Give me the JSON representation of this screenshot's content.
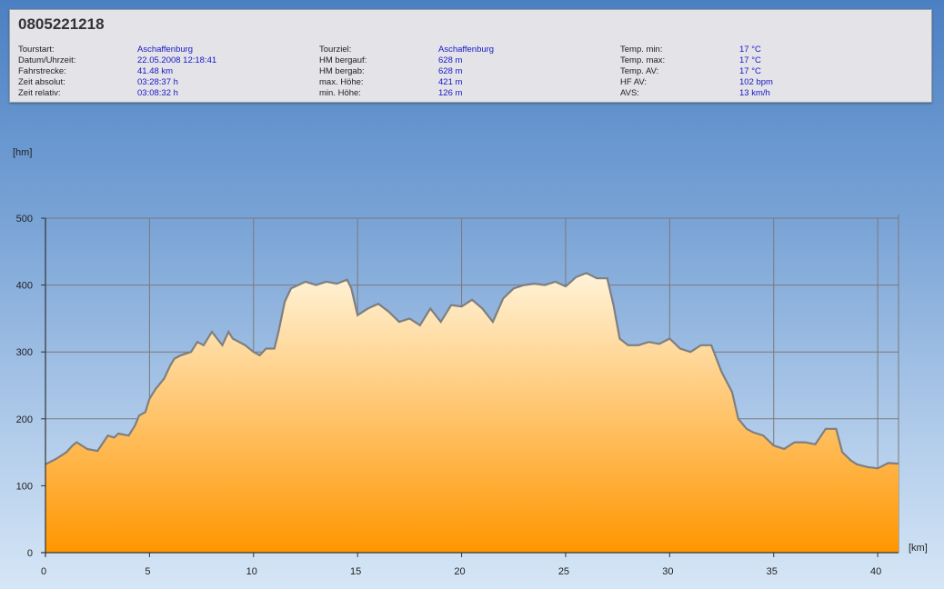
{
  "info": {
    "title": "0805221218",
    "columns": [
      [
        {
          "label": "Tourstart:",
          "value": "Aschaffenburg"
        },
        {
          "label": "Datum/Uhrzeit:",
          "value": "22.05.2008 12:18:41"
        },
        {
          "label": "Fahrstrecke:",
          "value": "41.48 km"
        },
        {
          "label": "Zeit absolut:",
          "value": "03:28:37 h"
        },
        {
          "label": "Zeit relativ:",
          "value": "03:08:32 h"
        }
      ],
      [
        {
          "label": "Tourziel:",
          "value": "Aschaffenburg"
        },
        {
          "label": "HM bergauf:",
          "value": "628 m"
        },
        {
          "label": "HM bergab:",
          "value": "628 m"
        },
        {
          "label": "max. Höhe:",
          "value": "421 m"
        },
        {
          "label": "min. Höhe:",
          "value": "126 m"
        }
      ],
      [
        {
          "label": "Temp. min:",
          "value": "17 °C"
        },
        {
          "label": "Temp. max:",
          "value": "17 °C"
        },
        {
          "label": "Temp. AV:",
          "value": "17 °C"
        },
        {
          "label": "HF AV:",
          "value": "102 bpm"
        },
        {
          "label": "AVS:",
          "value": "13 km/h"
        }
      ]
    ]
  },
  "chart_data": {
    "type": "area",
    "ylabel": "[hm]",
    "xlabel": "[km]",
    "xlim": [
      0,
      41
    ],
    "ylim": [
      0,
      500
    ],
    "x_ticks": [
      0,
      5,
      10,
      15,
      20,
      25,
      30,
      35,
      40
    ],
    "y_ticks": [
      0,
      100,
      200,
      300,
      400,
      500
    ],
    "grid": true,
    "colors": {
      "fill_top": "#fff3d9",
      "fill_bottom": "#ff9600",
      "line": "#7f7f7f",
      "grid": "#7a7a7a"
    },
    "x": [
      0,
      0.5,
      1,
      1.3,
      1.5,
      2,
      2.5,
      3,
      3.3,
      3.5,
      4,
      4.3,
      4.5,
      4.8,
      5,
      5.3,
      5.7,
      6,
      6.2,
      6.5,
      7,
      7.3,
      7.6,
      8,
      8.2,
      8.5,
      8.8,
      9,
      9.3,
      9.6,
      10,
      10.3,
      10.6,
      11,
      11.2,
      11.5,
      11.8,
      12.5,
      13,
      13.5,
      14,
      14.5,
      14.7,
      15,
      15.5,
      16,
      16.5,
      17,
      17.5,
      18,
      18.5,
      19,
      19.5,
      20,
      20.5,
      21,
      21.5,
      22,
      22.5,
      23,
      23.5,
      24,
      24.5,
      25,
      25.5,
      26,
      26.5,
      27,
      27.3,
      27.6,
      28,
      28.5,
      29,
      29.5,
      30,
      30.5,
      31,
      31.5,
      32,
      32.5,
      33,
      33.3,
      33.7,
      34,
      34.5,
      35,
      35.5,
      36,
      36.5,
      37,
      37.5,
      38,
      38.3,
      38.7,
      39,
      39.5,
      40,
      40.5,
      41
    ],
    "y": [
      132,
      140,
      150,
      160,
      165,
      155,
      152,
      175,
      172,
      178,
      175,
      190,
      205,
      210,
      230,
      245,
      260,
      280,
      290,
      295,
      300,
      315,
      310,
      330,
      322,
      310,
      330,
      320,
      315,
      310,
      300,
      295,
      305,
      305,
      330,
      375,
      395,
      405,
      400,
      405,
      402,
      408,
      395,
      355,
      365,
      372,
      360,
      345,
      350,
      340,
      365,
      345,
      370,
      368,
      378,
      365,
      345,
      380,
      395,
      400,
      402,
      400,
      405,
      398,
      412,
      418,
      410,
      410,
      370,
      320,
      310,
      310,
      315,
      312,
      320,
      305,
      300,
      310,
      310,
      270,
      240,
      200,
      185,
      180,
      175,
      160,
      155,
      165,
      165,
      162,
      185,
      185,
      150,
      138,
      132,
      128,
      126,
      134,
      133
    ]
  }
}
